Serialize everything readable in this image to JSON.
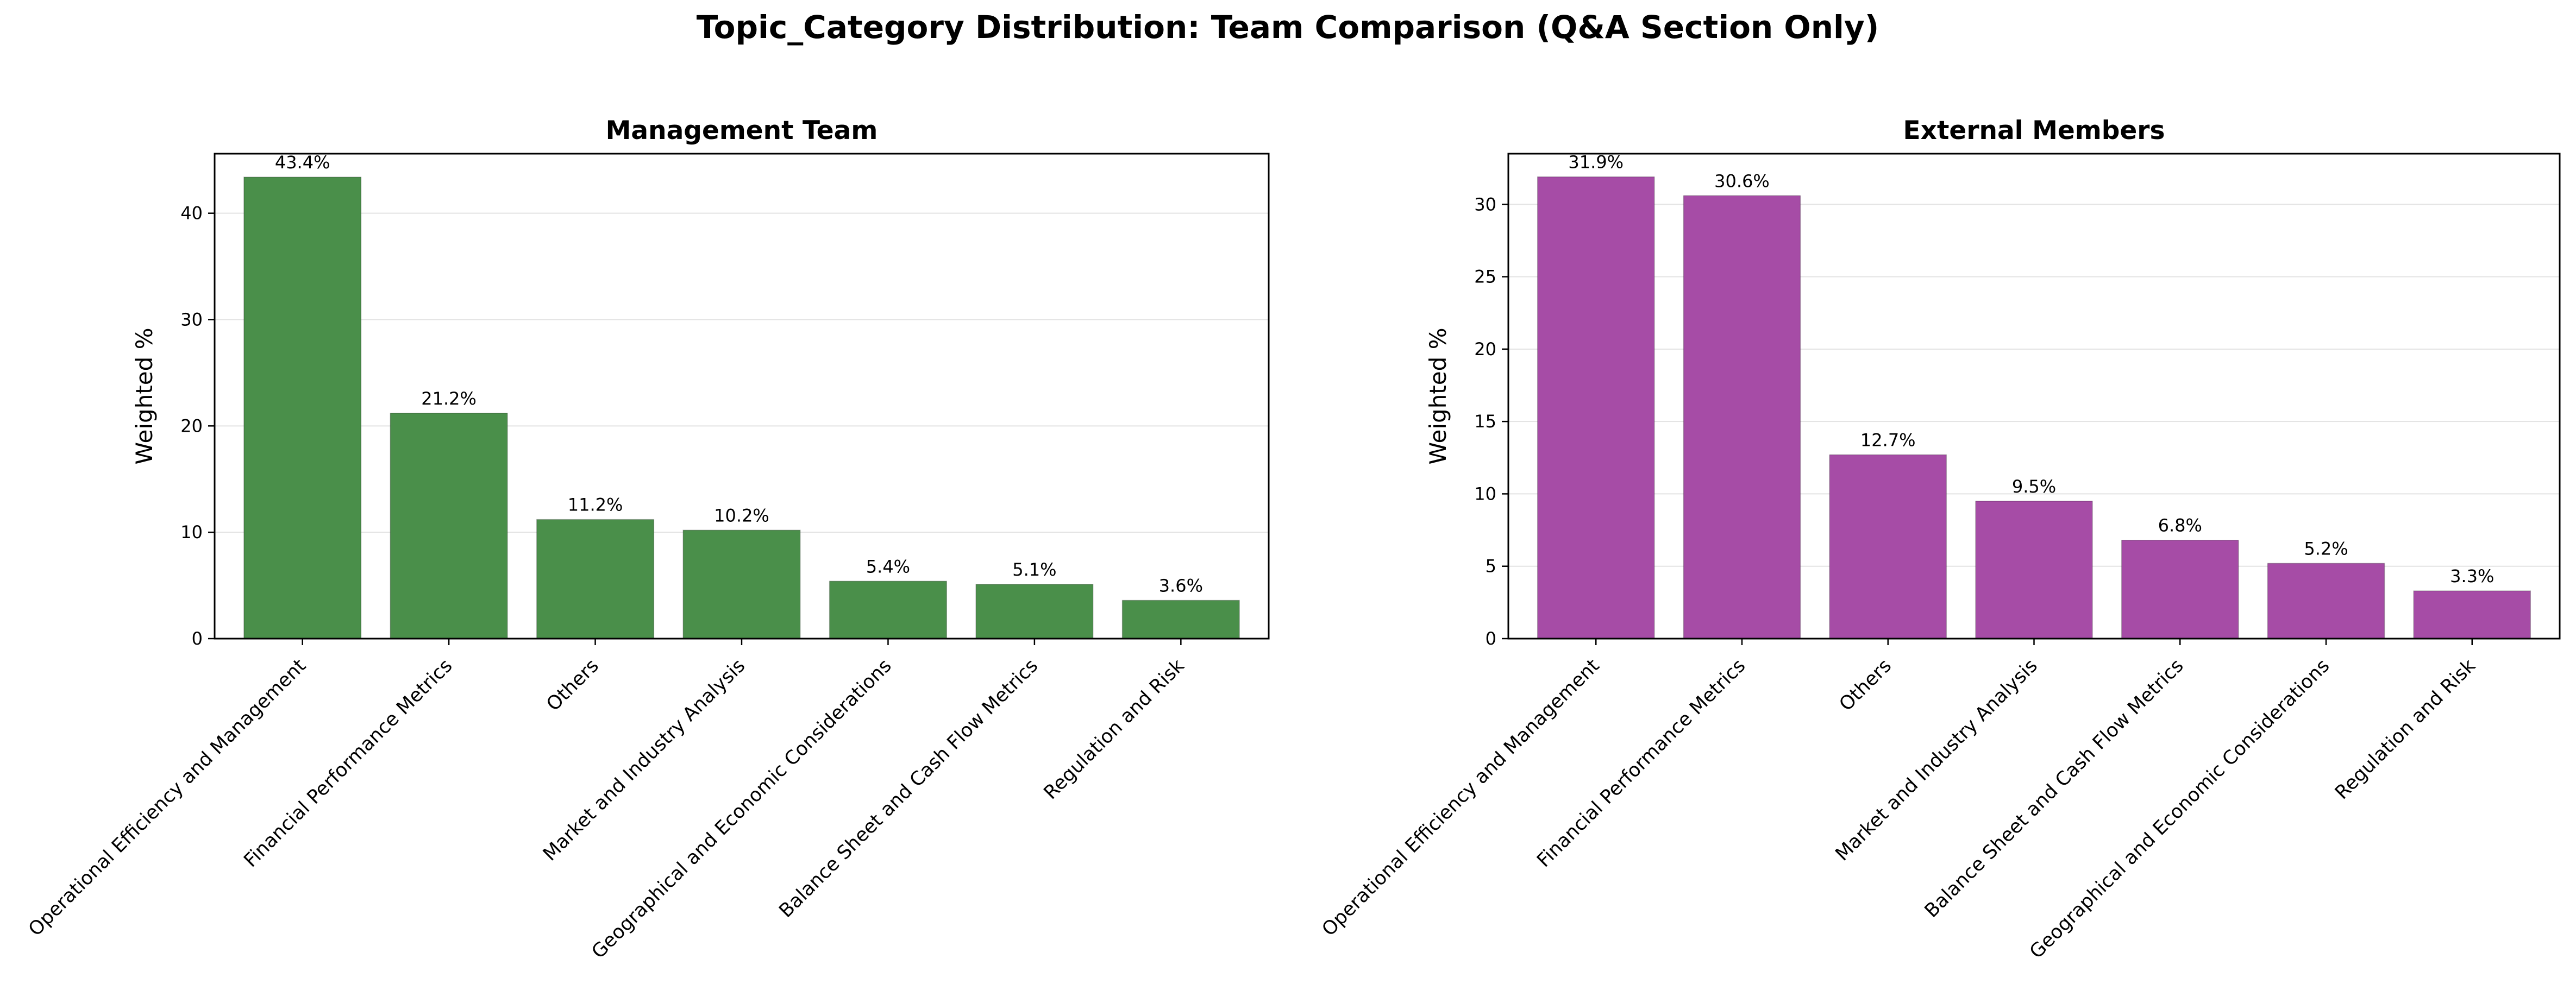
{
  "title": "Topic_Category Distribution: Team Comparison (Q&A Section Only)",
  "chart_data": [
    {
      "type": "bar",
      "title": "Management Team",
      "xlabel": "",
      "ylabel": "Weighted %",
      "ylim": [
        0,
        45.6
      ],
      "yticks": [
        0,
        10,
        20,
        30,
        40
      ],
      "grid": "y",
      "legend": "none",
      "color": "#4a8f4a",
      "categories": [
        "Operational Efficiency and Management",
        "Financial Performance Metrics",
        "Others",
        "Market and Industry Analysis",
        "Geographical and Economic Considerations",
        "Balance Sheet and Cash Flow Metrics",
        "Regulation and Risk"
      ],
      "values": [
        43.4,
        21.2,
        11.2,
        10.2,
        5.4,
        5.1,
        3.6
      ],
      "data_labels": [
        "43.4%",
        "21.2%",
        "11.2%",
        "10.2%",
        "5.4%",
        "5.1%",
        "3.6%"
      ]
    },
    {
      "type": "bar",
      "title": "External Members",
      "xlabel": "",
      "ylabel": "Weighted %",
      "ylim": [
        0,
        33.5
      ],
      "yticks": [
        0,
        5,
        10,
        15,
        20,
        25,
        30
      ],
      "grid": "y",
      "legend": "none",
      "color": "#a64ca6",
      "categories": [
        "Operational Efficiency and Management",
        "Financial Performance Metrics",
        "Others",
        "Market and Industry Analysis",
        "Balance Sheet and Cash Flow Metrics",
        "Geographical and Economic Considerations",
        "Regulation and Risk"
      ],
      "values": [
        31.9,
        30.6,
        12.7,
        9.5,
        6.8,
        5.2,
        3.3
      ],
      "data_labels": [
        "31.9%",
        "30.6%",
        "12.7%",
        "9.5%",
        "6.8%",
        "5.2%",
        "3.3%"
      ]
    }
  ]
}
